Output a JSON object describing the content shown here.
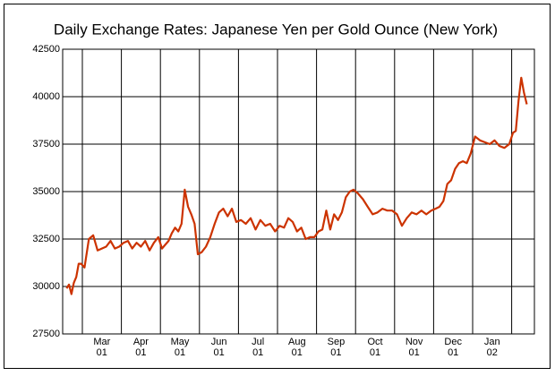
{
  "chart_data": {
    "type": "line",
    "title": "Daily Exchange Rates: Japanese Yen per Gold Ounce (New York)",
    "color": "#cc3300",
    "ylim": [
      27500,
      42500
    ],
    "yticks": [
      27500,
      30000,
      32500,
      35000,
      37500,
      40000,
      42500
    ],
    "grid": true,
    "periods": [
      {
        "values": [
          29900,
          30100,
          29600,
          30200,
          30500,
          31200,
          31200
        ]
      },
      {
        "month": "Mar",
        "year": "01",
        "values": [
          31000,
          32500,
          32700,
          31900,
          32000,
          32100,
          32400,
          32000,
          32100
        ]
      },
      {
        "month": "Apr",
        "year": "01",
        "values": [
          32300,
          32400,
          32000,
          32300,
          32100,
          32400,
          31900,
          32300,
          32600
        ]
      },
      {
        "month": "May",
        "year": "01",
        "values": [
          32000,
          32200,
          32400,
          32800,
          33100,
          32900,
          33300,
          35100,
          34200,
          33800,
          33300,
          31700
        ]
      },
      {
        "month": "Jun",
        "year": "01",
        "values": [
          31800,
          32100,
          32600,
          33300,
          33900,
          34100,
          33700,
          34100,
          33400
        ]
      },
      {
        "month": "Jul",
        "year": "01",
        "values": [
          33500,
          33300,
          33600,
          33000,
          33500,
          33200,
          33300,
          32900
        ]
      },
      {
        "month": "Aug",
        "year": "01",
        "values": [
          33200,
          33100,
          33600,
          33400,
          32900,
          33100,
          32500,
          32600,
          32600
        ]
      },
      {
        "month": "Sep",
        "year": "01",
        "values": [
          32900,
          33000,
          34000,
          33000,
          33800,
          33500,
          33900,
          34700,
          35000,
          35100
        ]
      },
      {
        "month": "Oct",
        "year": "01",
        "values": [
          34900,
          34600,
          34200,
          33800,
          33900,
          34100,
          34000,
          34000
        ]
      },
      {
        "month": "Nov",
        "year": "01",
        "values": [
          33800,
          33200,
          33600,
          33900,
          33800,
          34000,
          33800,
          34000
        ]
      },
      {
        "month": "Dec",
        "year": "01",
        "values": [
          34100,
          34200,
          34500,
          35400,
          35600,
          36200,
          36500,
          36600,
          36500,
          37000
        ]
      },
      {
        "month": "Jan",
        "year": "02",
        "values": [
          37900,
          37700,
          37600,
          37500,
          37700,
          37400,
          37300,
          37500
        ]
      },
      {
        "values": [
          38100,
          38200,
          39800,
          41000,
          40200,
          39600
        ]
      }
    ]
  }
}
